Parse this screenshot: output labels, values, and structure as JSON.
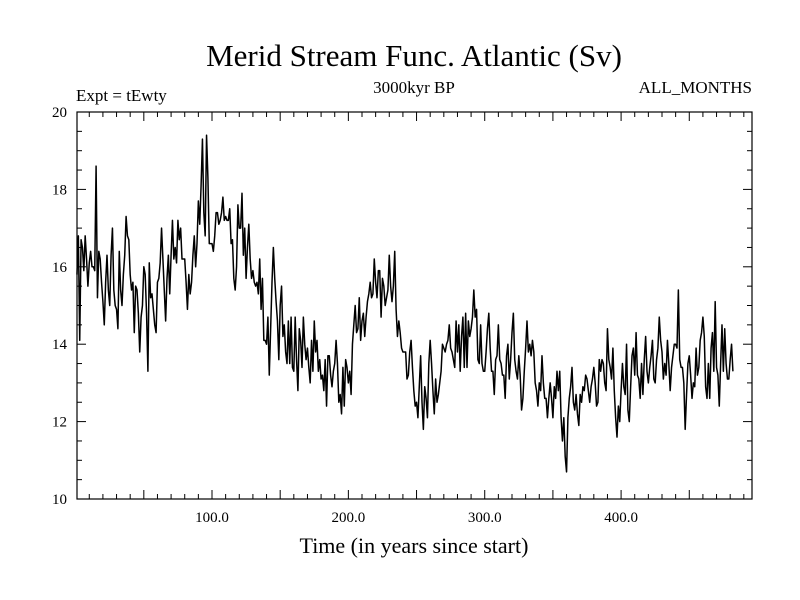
{
  "chart_data": {
    "type": "line",
    "title": "Merid Stream Func. Atlantic (Sv)",
    "left_label": "Expt = tEwty",
    "center_label": "3000kyr BP",
    "right_label": "ALL_MONTHS",
    "xlabel": "Time (in years since start)",
    "ylabel": "",
    "xlim": [
      1,
      496
    ],
    "ylim": [
      10,
      20
    ],
    "x_ticks": [
      100,
      200,
      300,
      400
    ],
    "x_tick_labels": [
      "100.0",
      "200.0",
      "300.0",
      "400.0"
    ],
    "y_ticks": [
      10,
      12,
      14,
      16,
      18,
      20
    ],
    "y_tick_labels": [
      "10",
      "12",
      "14",
      "16",
      "18",
      "20"
    ],
    "grid": false,
    "series": [
      {
        "name": "Merid Stream Func. Atlantic",
        "color": "#000000",
        "x_start": 1,
        "x_step": 1,
        "values": [
          15.8,
          16.8,
          14.1,
          16.7,
          16.5,
          15.9,
          16.8,
          16.2,
          15.5,
          16.1,
          16.4,
          16.0,
          16.0,
          15.9,
          18.6,
          15.2,
          16.4,
          16.2,
          15.6,
          15.1,
          14.5,
          15.6,
          16.3,
          15.4,
          15.0,
          16.3,
          17.0,
          15.4,
          15.0,
          14.9,
          14.4,
          16.4,
          15.4,
          15.0,
          15.8,
          16.3,
          17.3,
          16.8,
          16.7,
          15.8,
          15.4,
          15.6,
          14.3,
          15.5,
          15.4,
          14.8,
          13.8,
          14.7,
          15.0,
          16.0,
          15.8,
          14.8,
          13.3,
          16.1,
          15.2,
          15.3,
          14.9,
          14.5,
          14.3,
          15.6,
          15.7,
          16.1,
          17.0,
          16.2,
          15.4,
          14.6,
          15.7,
          16.3,
          15.3,
          16.3,
          17.2,
          16.2,
          16.5,
          16.1,
          17.2,
          16.7,
          17.0,
          16.2,
          16.2,
          16.2,
          15.6,
          14.9,
          15.8,
          15.3,
          15.6,
          16.3,
          16.8,
          16.0,
          16.6,
          17.7,
          17.1,
          18.1,
          19.3,
          17.4,
          16.8,
          19.4,
          18.3,
          16.6,
          16.6,
          16.6,
          16.4,
          16.8,
          17.4,
          17.4,
          17.1,
          17.2,
          17.4,
          17.8,
          17.2,
          17.3,
          17.2,
          17.2,
          17.5,
          16.6,
          16.7,
          15.7,
          15.4,
          16.0,
          17.6,
          17.0,
          17.0,
          17.9,
          16.3,
          17.0,
          15.7,
          16.5,
          17.1,
          16.2,
          15.7,
          15.9,
          15.6,
          15.5,
          15.6,
          15.3,
          16.2,
          14.9,
          15.7,
          14.1,
          14.1,
          14.0,
          14.7,
          13.2,
          14.4,
          15.6,
          16.5,
          15.7,
          15.1,
          14.6,
          13.6,
          15.0,
          15.5,
          14.2,
          14.5,
          13.8,
          13.5,
          14.6,
          13.5,
          14.7,
          13.4,
          13.3,
          14.7,
          13.6,
          12.8,
          14.4,
          14.1,
          13.4,
          14.7,
          14.0,
          13.6,
          13.9,
          13.4,
          13.0,
          14.1,
          13.3,
          14.6,
          13.8,
          14.1,
          13.3,
          13.6,
          13.1,
          13.2,
          12.8,
          13.6,
          12.4,
          13.7,
          13.7,
          13.2,
          12.9,
          13.3,
          13.5,
          14.1,
          13.5,
          12.5,
          12.7,
          12.2,
          13.4,
          12.4,
          13.6,
          13.4,
          13.0,
          13.3,
          12.7,
          14.0,
          14.5,
          15.0,
          14.3,
          14.4,
          15.2,
          14.1,
          14.6,
          14.8,
          14.2,
          14.7,
          15.1,
          15.3,
          15.6,
          15.2,
          15.3,
          16.2,
          15.6,
          15.2,
          15.9,
          15.9,
          14.7,
          15.7,
          15.5,
          15.0,
          15.2,
          15.4,
          16.3,
          15.5,
          15.1,
          15.5,
          16.4,
          14.9,
          14.2,
          14.6,
          14.3,
          13.9,
          13.8,
          13.8,
          13.8,
          13.1,
          13.2,
          13.8,
          14.1,
          13.4,
          12.8,
          12.4,
          12.5,
          12.1,
          12.9,
          13.7,
          12.5,
          11.8,
          12.9,
          12.6,
          12.1,
          13.5,
          14.1,
          13.5,
          12.8,
          12.2,
          13.1,
          12.5,
          12.7,
          13.0,
          13.3,
          14.0,
          13.9,
          13.8,
          14.0,
          14.1,
          14.5,
          13.9,
          13.8,
          13.6,
          13.4,
          14.6,
          13.8,
          14.5,
          13.3,
          14.2,
          14.7,
          13.4,
          14.8,
          13.4,
          14.6,
          14.2,
          14.4,
          14.7,
          15.4,
          14.7,
          14.9,
          13.6,
          13.5,
          14.5,
          13.5,
          13.3,
          13.3,
          13.8,
          14.4,
          14.8,
          13.9,
          13.3,
          13.3,
          12.7,
          13.6,
          13.7,
          14.5,
          13.6,
          13.5,
          13.2,
          13.2,
          12.6,
          13.7,
          14.0,
          13.1,
          13.6,
          14.3,
          14.8,
          13.6,
          13.3,
          13.1,
          13.7,
          13.2,
          12.3,
          12.6,
          13.3,
          13.9,
          14.6,
          13.8,
          14.0,
          13.7,
          14.1,
          13.8,
          13.0,
          12.8,
          12.4,
          13.0,
          12.8,
          13.7,
          13.0,
          12.6,
          12.6,
          12.1,
          12.6,
          13.0,
          12.6,
          12.1,
          12.9,
          12.6,
          13.3,
          12.8,
          13.3,
          12.1,
          11.5,
          12.1,
          11.1,
          10.7,
          12.1,
          12.6,
          12.9,
          13.4,
          12.5,
          12.3,
          12.7,
          12.2,
          11.9,
          12.7,
          12.5,
          12.9,
          12.8,
          13.2,
          13.1,
          12.8,
          12.5,
          12.9,
          13.1,
          13.4,
          13.0,
          12.4,
          12.5,
          13.6,
          13.3,
          13.6,
          13.5,
          13.0,
          12.8,
          14.4,
          13.6,
          13.4,
          13.1,
          13.9,
          12.8,
          12.1,
          11.6,
          12.4,
          12.0,
          12.8,
          13.5,
          12.9,
          12.7,
          14.0,
          12.3,
          12.0,
          12.9,
          13.7,
          13.9,
          13.2,
          14.3,
          13.2,
          13.1,
          12.6,
          13.5,
          12.7,
          13.6,
          14.2,
          13.3,
          13.0,
          13.4,
          13.7,
          14.1,
          13.1,
          13.0,
          13.6,
          13.9,
          14.7,
          14.1,
          13.8,
          13.1,
          13.5,
          13.2,
          14.1,
          13.5,
          12.8,
          13.4,
          13.7,
          14.0,
          14.0,
          13.9,
          15.4,
          13.6,
          13.4,
          13.4,
          13.0,
          11.8,
          12.7,
          13.5,
          13.7,
          13.2,
          12.6,
          13.0,
          12.9,
          13.9,
          13.2,
          13.4,
          14.1,
          14.3,
          14.7,
          14.2,
          12.9,
          12.6,
          13.5,
          12.6,
          13.9,
          14.3,
          13.3,
          15.1,
          13.4,
          13.2,
          12.4,
          13.5,
          14.5,
          13.3,
          14.4,
          13.5,
          13.1,
          13.1,
          13.6,
          14.0,
          13.3
        ]
      }
    ]
  }
}
